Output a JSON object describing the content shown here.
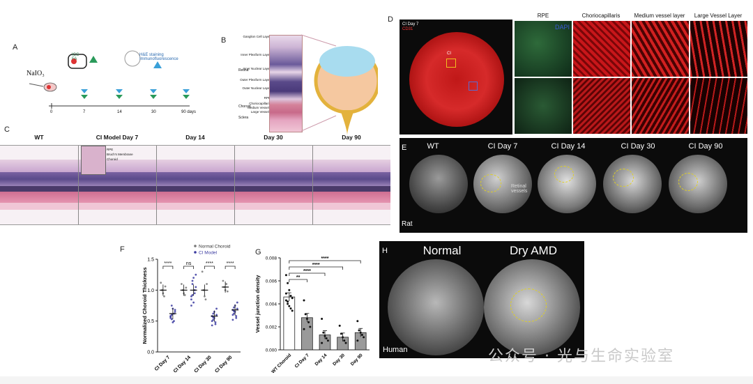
{
  "panels": {
    "A": {
      "label": "A",
      "compound": "NaIO₃",
      "icg_label": "ICG FA",
      "he_label": "H&E staining Immunofluorescence",
      "timeline_ticks": [
        "0",
        "7",
        "14",
        "30",
        "90 days"
      ]
    },
    "B": {
      "label": "B",
      "retina": "Retina",
      "choroid": "Choroid",
      "sclera": "Sclera",
      "layers": [
        "Ganglion Cell Layer",
        "Inner Plexiform Layer",
        "Inner Nuclear Layer",
        "Outer Plexiform Layer",
        "Outer Nuclear Layer",
        "RPE",
        "Choriocapillaris",
        "Medium Vessels",
        "Large Vessels"
      ]
    },
    "C": {
      "label": "C",
      "columns": [
        "WT",
        "CI Model Day 7",
        "Day  14",
        "Day 30",
        "Day 90"
      ],
      "inset": [
        "RPE",
        "Bruch's Membrane",
        "Choroid"
      ]
    },
    "D": {
      "label": "D",
      "flatmount_tags": [
        "CI Day 7",
        "CD31"
      ],
      "marker": "CI",
      "columns": [
        "RPE",
        "Choriocapillaris",
        "Medium vessel layer",
        "Large Vessel Layer"
      ],
      "dapi": "DAPI"
    },
    "E": {
      "label": "E",
      "columns": [
        "WT",
        "CI Day 7",
        "CI Day 14",
        "CI Day 30",
        "CI Day 90"
      ],
      "annotation": "Retinal vessels",
      "species": "Rat"
    },
    "H": {
      "label": "H",
      "columns": [
        "Normal",
        "Dry AMD"
      ],
      "species": "Human"
    }
  },
  "chart_data": [
    {
      "panel": "F",
      "type": "scatter",
      "ylabel": "Normalized Choroid Thickness",
      "ylim": [
        0.0,
        1.5
      ],
      "yticks": [
        "0.0",
        "0.5",
        "1.0",
        "1.5"
      ],
      "categories": [
        "CI Day 7",
        "CI Day 14",
        "CI Day 30",
        "CI Day 90"
      ],
      "legend": [
        "Normal Choroid",
        "CI Model"
      ],
      "significance": [
        "****",
        "ns",
        "****",
        "****"
      ],
      "series": [
        {
          "name": "Normal Choroid",
          "color": "#777777",
          "means": [
            1.0,
            1.0,
            1.0,
            1.05
          ],
          "points": [
            [
              1.12,
              1.0,
              0.95,
              0.9,
              1.06
            ],
            [
              1.1,
              1.0,
              0.95,
              0.92,
              1.04
            ],
            [
              1.3,
              1.0,
              0.9,
              0.85,
              1.1
            ],
            [
              1.15,
              1.05,
              1.0,
              1.1,
              0.98
            ]
          ]
        },
        {
          "name": "CI Model",
          "color": "#3a3aa0",
          "means": [
            0.62,
            1.0,
            0.58,
            0.68
          ],
          "points": [
            [
              0.55,
              0.6,
              0.7,
              0.5,
              0.65,
              0.58,
              0.75,
              0.48,
              0.62,
              0.68,
              0.57,
              0.53
            ],
            [
              0.9,
              1.1,
              1.2,
              0.95,
              1.05,
              0.85,
              1.15,
              0.8,
              1.0,
              1.25,
              0.75,
              0.92
            ],
            [
              0.5,
              0.62,
              0.55,
              0.45,
              0.7,
              0.58,
              0.52,
              0.65,
              0.48,
              0.6,
              0.43,
              0.56
            ],
            [
              0.6,
              0.72,
              0.65,
              0.55,
              0.8,
              0.68,
              0.62,
              0.75,
              0.58,
              0.7,
              0.52,
              0.66
            ]
          ]
        }
      ]
    },
    {
      "panel": "G",
      "type": "bar",
      "ylabel": "Vessel junction density",
      "ylim": [
        0.0,
        0.008
      ],
      "yticks": [
        "0.000",
        "0.002",
        "0.004",
        "0.006",
        "0.008"
      ],
      "categories": [
        "WT Choroid",
        "CI Day 7",
        "Day 14",
        "Day 30",
        "Day 90"
      ],
      "values": [
        0.0046,
        0.0028,
        0.0013,
        0.0011,
        0.0015
      ],
      "bar_colors": [
        "#ffffff",
        "#9a9a9a",
        "#9a9a9a",
        "#9a9a9a",
        "#9a9a9a"
      ],
      "points": [
        [
          0.0065,
          0.0058,
          0.0052,
          0.0047,
          0.0045,
          0.0043,
          0.004,
          0.0038,
          0.0036,
          0.0034,
          0.0049,
          0.0042
        ],
        [
          0.0043,
          0.0031,
          0.0027,
          0.0024,
          0.002,
          0.0018
        ],
        [
          0.0027,
          0.0015,
          0.0012,
          0.001,
          0.0008,
          0.0006
        ],
        [
          0.0021,
          0.0014,
          0.0011,
          0.0008,
          0.0006
        ],
        [
          0.0025,
          0.0017,
          0.0015,
          0.0013,
          0.0011,
          0.0008
        ]
      ],
      "significance": [
        "**",
        "****",
        "****",
        "****"
      ]
    }
  ],
  "watermark": "公众号 · 光与生命实验室"
}
